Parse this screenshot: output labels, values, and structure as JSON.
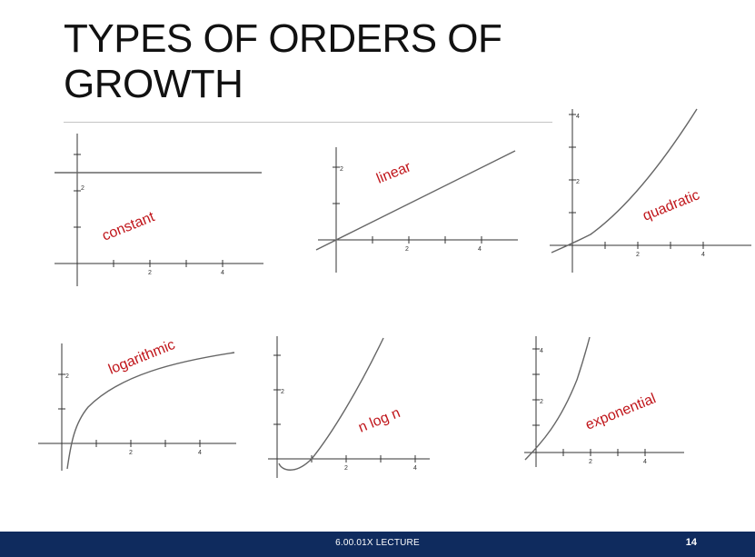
{
  "slide": {
    "title": "TYPES OF ORDERS OF GROWTH"
  },
  "plots": [
    {
      "id": "constant",
      "label": "constant",
      "x_ticks": [
        "2",
        "4"
      ],
      "y_ticks": [
        "2"
      ]
    },
    {
      "id": "linear",
      "label": "linear",
      "x_ticks": [
        "2",
        "4"
      ],
      "y_ticks": [
        "2"
      ]
    },
    {
      "id": "quadratic",
      "label": "quadratic",
      "x_ticks": [
        "2",
        "4"
      ],
      "y_ticks": [
        "2",
        "4"
      ]
    },
    {
      "id": "logarithmic",
      "label": "logarithmic",
      "x_ticks": [
        "2",
        "4"
      ],
      "y_ticks": [
        "2"
      ]
    },
    {
      "id": "nlogn",
      "label": "n log n",
      "x_ticks": [
        "2",
        "4"
      ],
      "y_ticks": [
        "2"
      ]
    },
    {
      "id": "exponential",
      "label": "exponential",
      "x_ticks": [
        "2",
        "4"
      ],
      "y_ticks": [
        "2",
        "4"
      ]
    }
  ],
  "footer": {
    "text": "6.00.01X LECTURE",
    "page_number": "14",
    "background_color": "#0f2b5e"
  },
  "colors": {
    "label_red": "#c0161b",
    "curve_gray": "#666666"
  }
}
